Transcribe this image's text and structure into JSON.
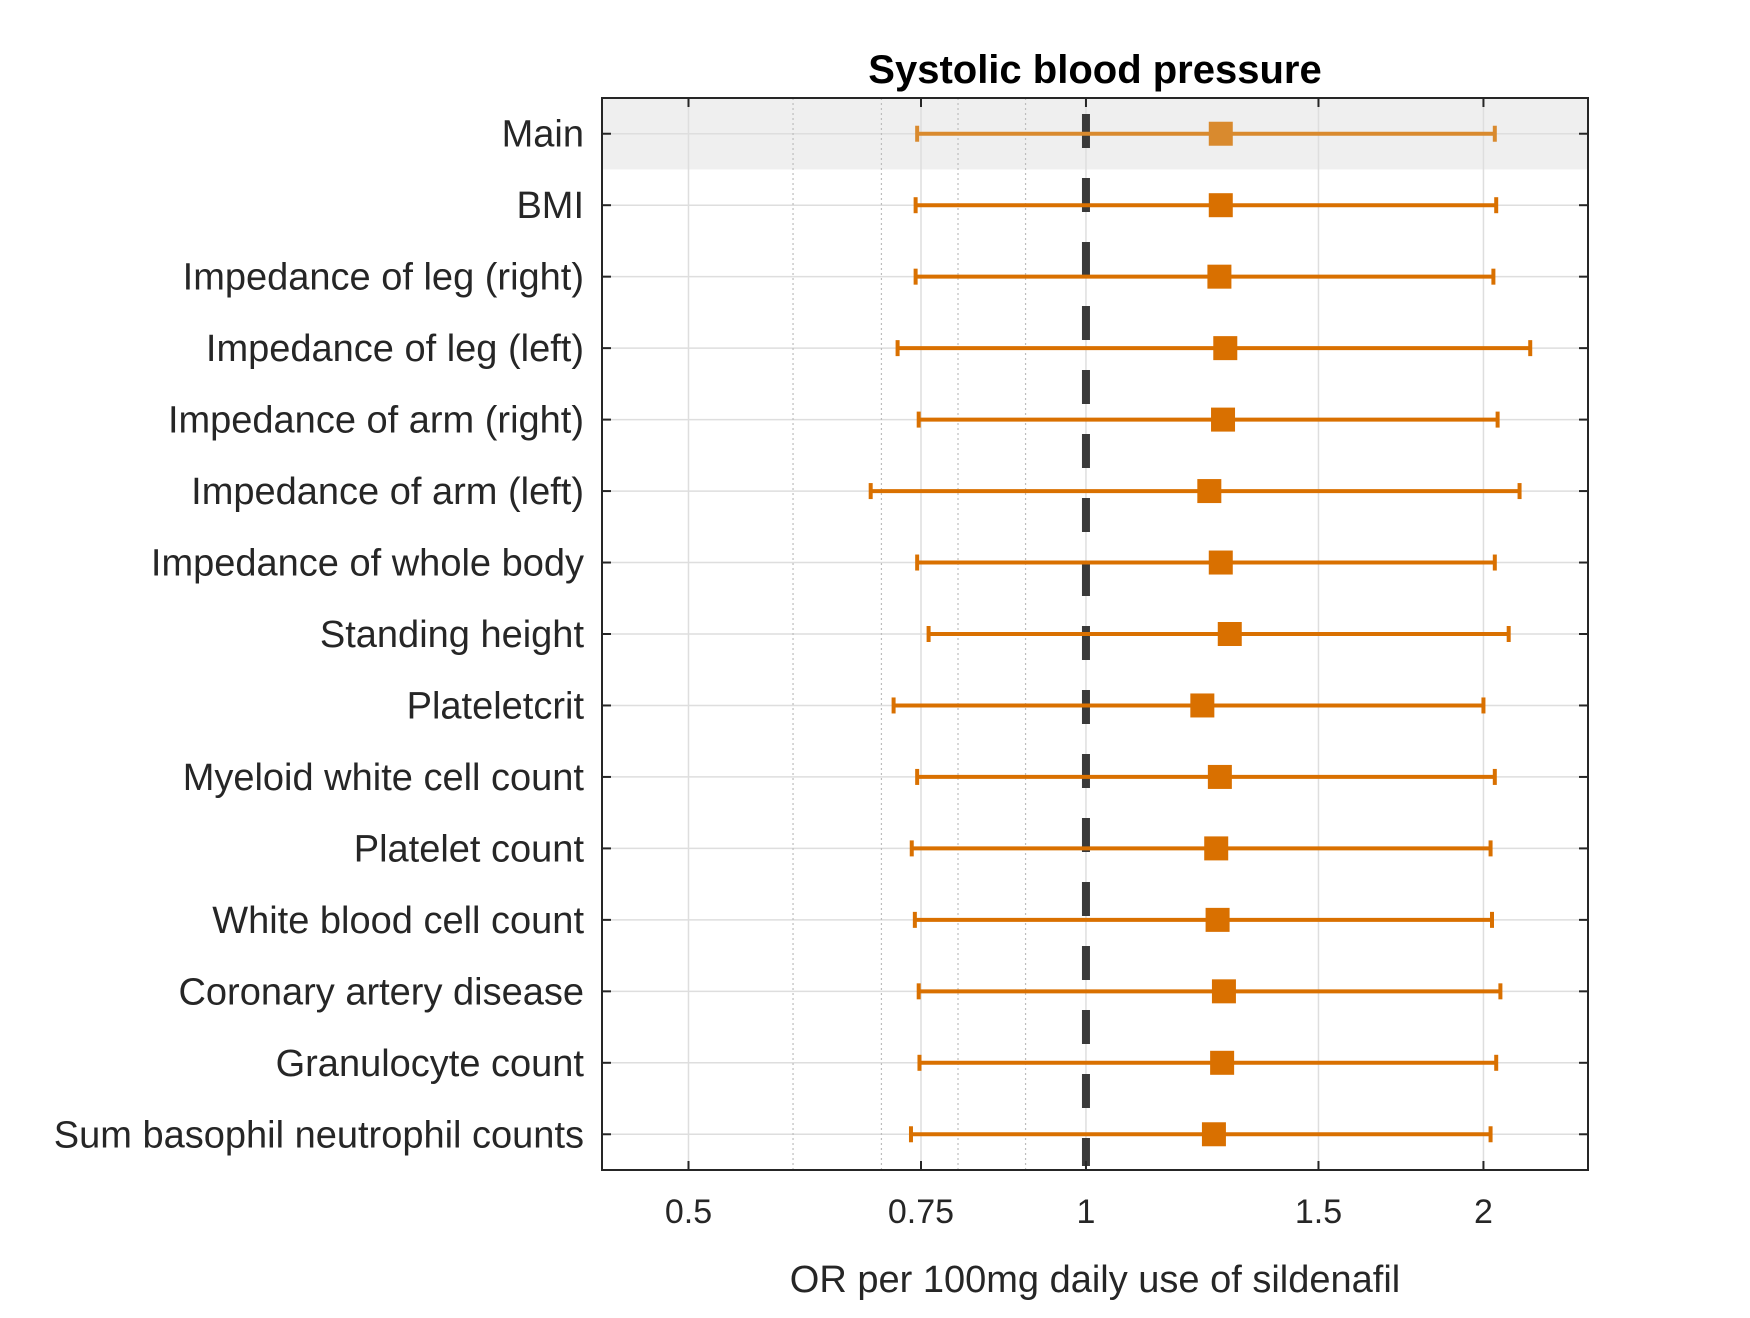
{
  "chart_data": {
    "type": "forest",
    "title": "Systolic blood pressure",
    "xlabel": "OR per 100mg daily use of sildenafil",
    "ylabel": "",
    "x_scale": "log",
    "xlim": [
      0.43,
      2.4
    ],
    "x_ticks": [
      0.5,
      0.75,
      1,
      1.5,
      2
    ],
    "x_tick_labels": [
      "0.5",
      "0.75",
      "1",
      "1.5",
      "2"
    ],
    "minor_grid_x": [
      0.6,
      0.7,
      0.8,
      0.9
    ],
    "reference_line": 1,
    "highlighted_row": "Main",
    "colors": {
      "point": "#d97000",
      "main_point": "#d98a2e",
      "reference": "#3a3a3a",
      "highlight_band": "#efefef",
      "grid": "#dedede"
    },
    "rows": [
      {
        "label": "Main",
        "or": 1.265,
        "lower": 0.745,
        "upper": 2.04
      },
      {
        "label": "BMI",
        "or": 1.265,
        "lower": 0.743,
        "upper": 2.045
      },
      {
        "label": "Impedance of leg (right)",
        "or": 1.262,
        "lower": 0.743,
        "upper": 2.035
      },
      {
        "label": "Impedance of leg (left)",
        "or": 1.275,
        "lower": 0.72,
        "upper": 2.17
      },
      {
        "label": "Impedance of arm (right)",
        "or": 1.27,
        "lower": 0.747,
        "upper": 2.05
      },
      {
        "label": "Impedance of arm (left)",
        "or": 1.24,
        "lower": 0.687,
        "upper": 2.13
      },
      {
        "label": "Impedance of whole body",
        "or": 1.265,
        "lower": 0.745,
        "upper": 2.04
      },
      {
        "label": "Standing height",
        "or": 1.285,
        "lower": 0.76,
        "upper": 2.09
      },
      {
        "label": "Plateletcrit",
        "or": 1.225,
        "lower": 0.715,
        "upper": 2.0
      },
      {
        "label": "Myeloid white cell count",
        "or": 1.263,
        "lower": 0.745,
        "upper": 2.04
      },
      {
        "label": "Platelet count",
        "or": 1.255,
        "lower": 0.738,
        "upper": 2.025
      },
      {
        "label": "White blood cell count",
        "or": 1.258,
        "lower": 0.742,
        "upper": 2.03
      },
      {
        "label": "Coronary artery disease",
        "or": 1.272,
        "lower": 0.747,
        "upper": 2.06
      },
      {
        "label": "Granulocyte count",
        "or": 1.268,
        "lower": 0.748,
        "upper": 2.045
      },
      {
        "label": "Sum basophil neutrophil counts",
        "or": 1.25,
        "lower": 0.737,
        "upper": 2.025
      }
    ]
  }
}
